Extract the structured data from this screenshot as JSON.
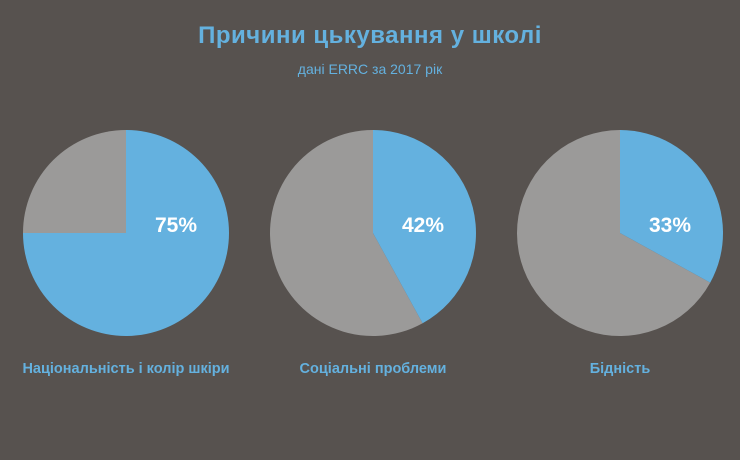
{
  "title": "Причини цькування у школі",
  "subtitle": "дані ERRC за 2017 рік",
  "colors": {
    "background": "#57524f",
    "accent": "#64b1df",
    "rest": "#9b9a99",
    "label": "#ffffff"
  },
  "chart_data": [
    {
      "type": "pie",
      "category": "Національність і колір шкіри",
      "value": 75,
      "value_label": "75%"
    },
    {
      "type": "pie",
      "category": "Соціальні проблеми",
      "value": 42,
      "value_label": "42%"
    },
    {
      "type": "pie",
      "category": "Бідність",
      "value": 33,
      "value_label": "33%"
    }
  ]
}
